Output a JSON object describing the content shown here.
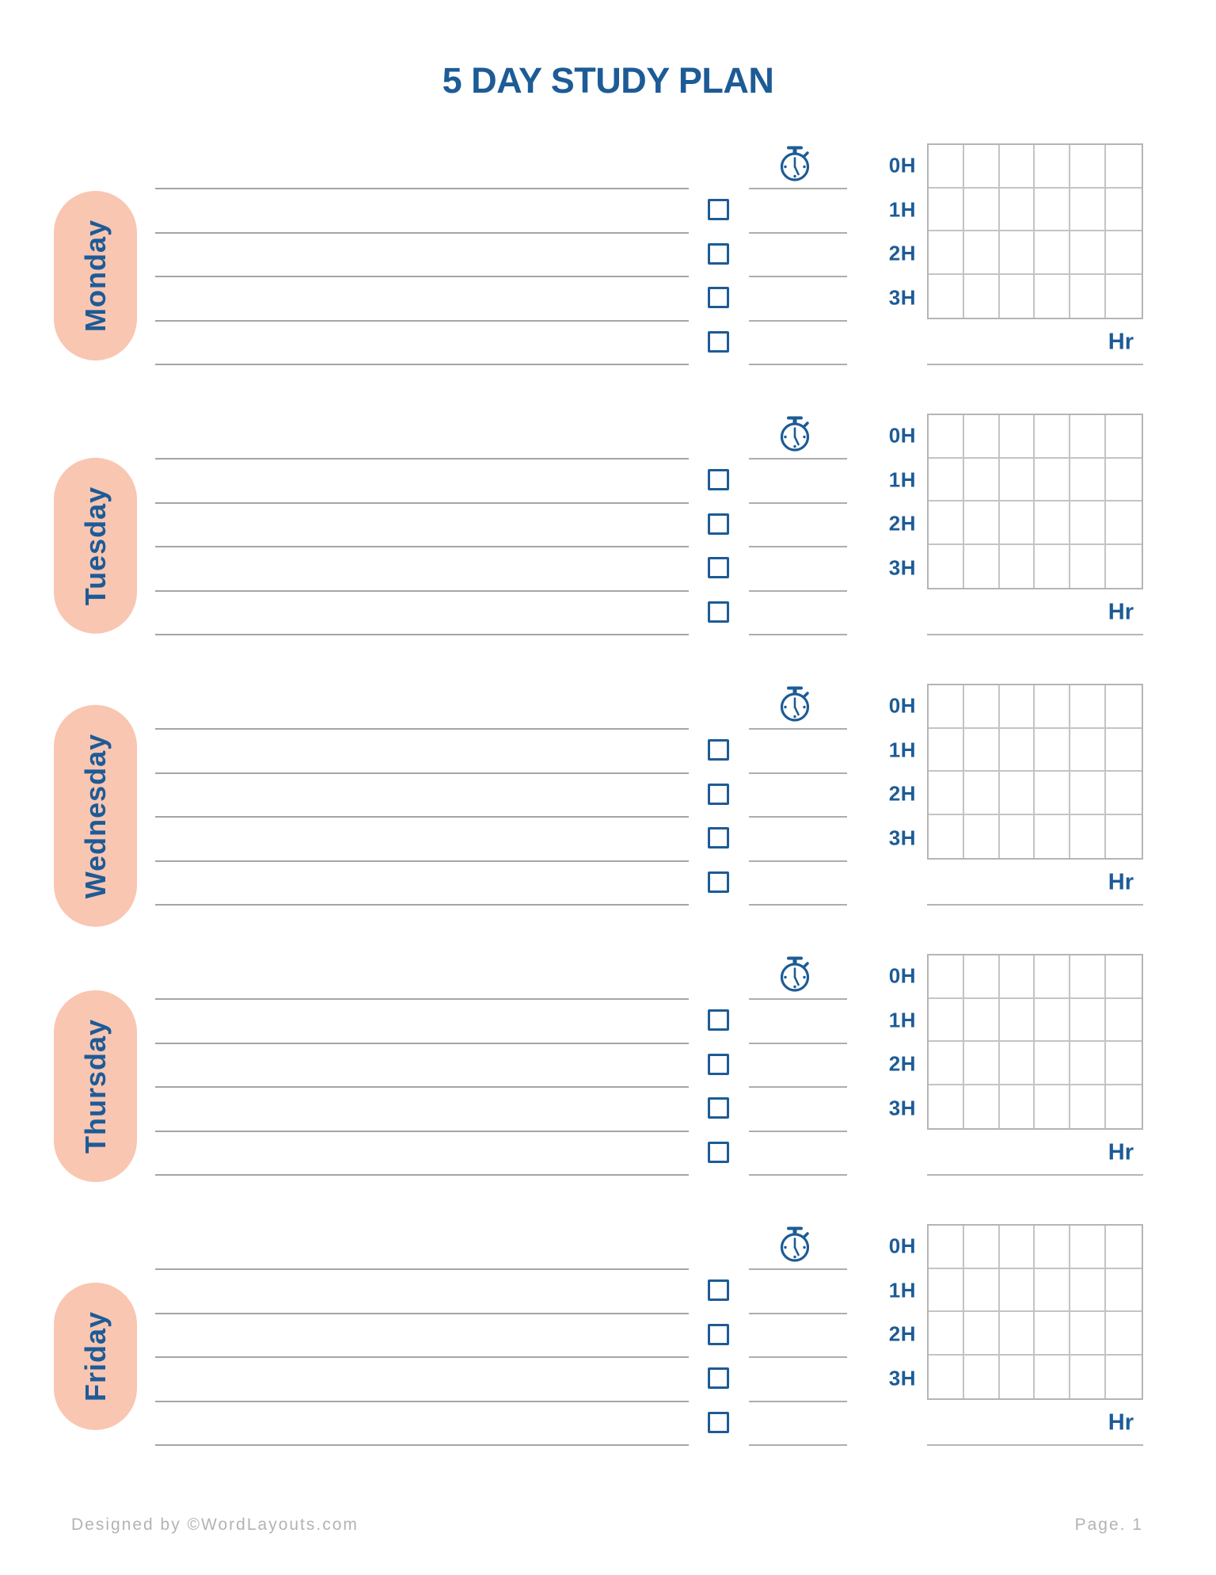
{
  "page": {
    "title": "5 DAY STUDY PLAN"
  },
  "days": [
    {
      "label": "Monday"
    },
    {
      "label": "Tuesday"
    },
    {
      "label": "Wednesday"
    },
    {
      "label": "Thursday"
    },
    {
      "label": "Friday"
    }
  ],
  "day_block": {
    "hour_labels": [
      "0H",
      "1H",
      "2H",
      "3H"
    ],
    "hour_axis_label": "Hr",
    "task_line_count": 5,
    "checkbox_count": 4,
    "hour_grid": {
      "rows": 4,
      "cols": 6
    },
    "timer_icon": "stopwatch-icon"
  },
  "footer": {
    "credit": "Designed by ©WordLayouts.com",
    "page_number": "Page. 1"
  },
  "colors": {
    "accent_blue": "#1d5b96",
    "pill_pink": "#f9c6b2",
    "rule_gray": "#a5a5a5",
    "grid_gray": "#c4c4c4",
    "footer_gray": "#b3b3b3"
  }
}
